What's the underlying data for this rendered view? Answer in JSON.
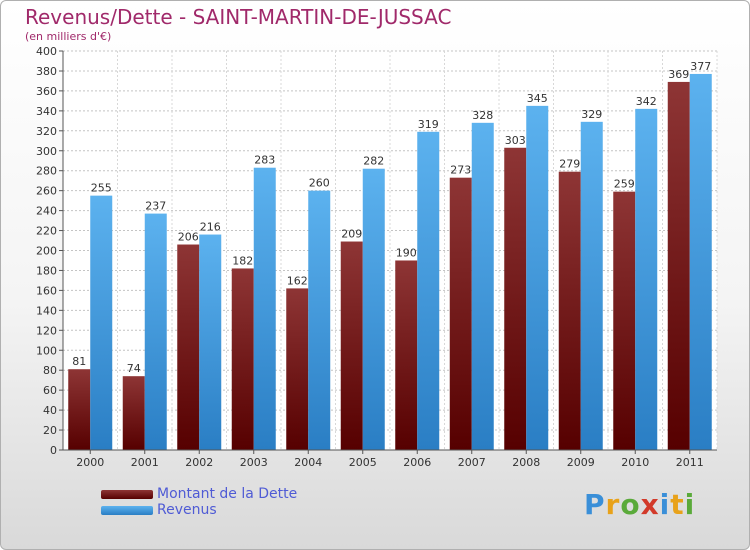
{
  "header": {
    "title": "Revenus/Dette - SAINT-MARTIN-DE-JUSSAC",
    "subtitle": "(en milliers d'€)"
  },
  "legend": {
    "items": [
      {
        "label": "Montant de la Dette",
        "color": "#7a1515"
      },
      {
        "label": "Revenus",
        "color": "#4aa3e6"
      }
    ]
  },
  "logo": {
    "text": "Proxiti"
  },
  "chart_data": {
    "type": "bar",
    "title": "Revenus/Dette - SAINT-MARTIN-DE-JUSSAC",
    "subtitle": "(en milliers d'€)",
    "categories": [
      "2000",
      "2001",
      "2002",
      "2003",
      "2004",
      "2005",
      "2006",
      "2007",
      "2008",
      "2009",
      "2010",
      "2011"
    ],
    "series": [
      {
        "name": "Montant de la Dette",
        "color": "#7a1515",
        "values": [
          81,
          74,
          206,
          182,
          162,
          209,
          190,
          273,
          303,
          279,
          259,
          369
        ]
      },
      {
        "name": "Revenus",
        "color": "#4aa3e6",
        "values": [
          255,
          237,
          216,
          283,
          260,
          282,
          319,
          328,
          345,
          329,
          342,
          377
        ]
      }
    ],
    "ylim": [
      0,
      400
    ],
    "ytick_step": 20,
    "grid": true,
    "legend_position": "bottom-left"
  }
}
